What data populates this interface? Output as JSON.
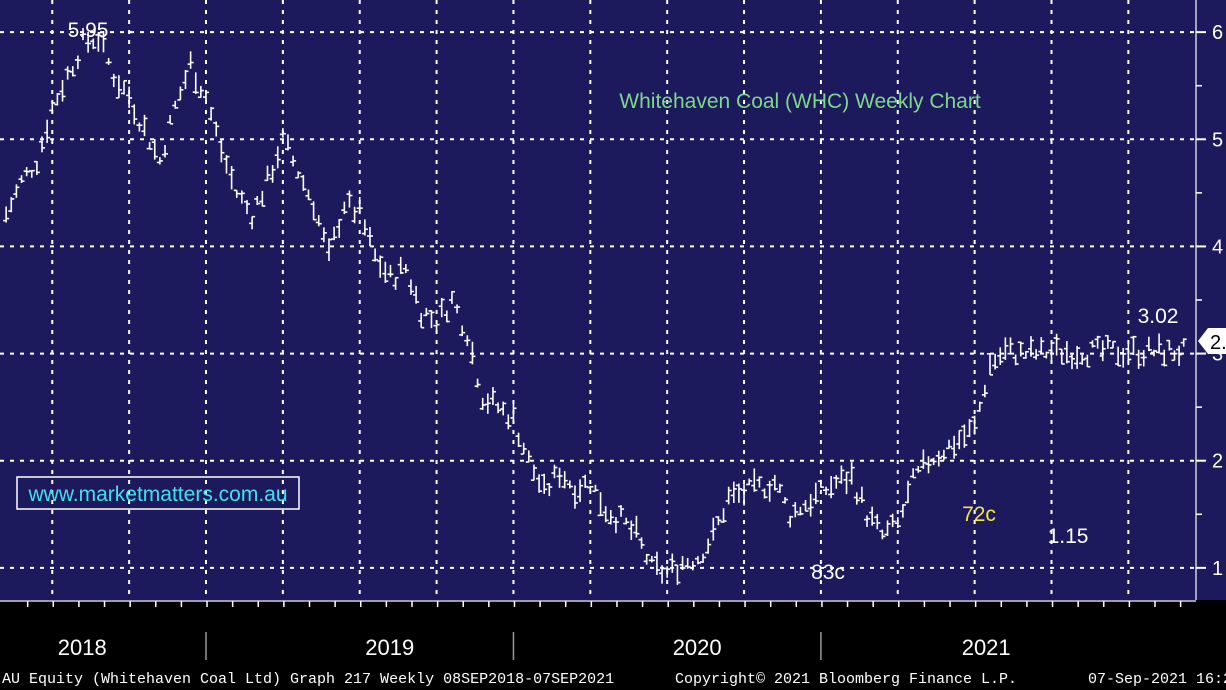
{
  "chart_data": {
    "type": "line",
    "title": "Whitehaven Coal (WHC) Weekly Chart",
    "watermark": "www.marketmatters.com.au",
    "x_labels": [
      "2018",
      "2019",
      "2020",
      "2021"
    ],
    "y_ticks": [
      "6",
      "5",
      "4",
      "3",
      "2",
      "1"
    ],
    "ylim": [
      0.7,
      6.3
    ],
    "grid": true,
    "last_price_tag": "2.",
    "annotations": [
      {
        "text": "5.95",
        "color": "#ffffff"
      },
      {
        "text": "83c",
        "color": "#ffffff"
      },
      {
        "text": "72c",
        "color": "#f5e63c"
      },
      {
        "text": "1.15",
        "color": "#ffffff"
      },
      {
        "text": "3.02",
        "color": "#ffffff"
      }
    ],
    "series": [
      {
        "name": "",
        "x": [
          2017.85,
          2017.9,
          2017.95,
          2018.0,
          2018.05,
          2018.1,
          2018.15,
          2018.2,
          2018.25,
          2018.3,
          2018.35,
          2018.4,
          2018.45,
          2018.5,
          2018.55,
          2018.6,
          2018.65,
          2018.7,
          2018.75,
          2018.8,
          2018.85,
          2018.9,
          2018.95,
          2019.0,
          2019.05,
          2019.1,
          2019.15,
          2019.2,
          2019.25,
          2019.3,
          2019.35,
          2019.4,
          2019.45,
          2019.5,
          2019.55,
          2019.6,
          2019.65,
          2019.7,
          2019.75,
          2019.8,
          2019.85,
          2019.9,
          2019.95,
          2020.0,
          2020.05,
          2020.1,
          2020.15,
          2020.2,
          2020.25,
          2020.3,
          2020.35,
          2020.4,
          2020.45,
          2020.5,
          2020.55,
          2020.6,
          2020.65,
          2020.7,
          2020.75,
          2020.8,
          2020.85,
          2020.9,
          2020.95,
          2021.0,
          2021.05,
          2021.1,
          2021.15,
          2021.2,
          2021.25,
          2021.3,
          2021.35,
          2021.4,
          2021.45,
          2021.5,
          2021.55,
          2021.6,
          2021.65,
          2021.68
        ],
        "y": [
          4.3,
          4.6,
          4.8,
          5.3,
          5.6,
          5.9,
          5.95,
          5.6,
          5.4,
          5.1,
          4.8,
          5.3,
          5.7,
          5.4,
          4.9,
          4.5,
          4.3,
          4.6,
          5.0,
          4.7,
          4.4,
          3.9,
          4.4,
          4.3,
          3.9,
          3.7,
          3.8,
          3.4,
          3.3,
          3.5,
          3.2,
          2.6,
          2.5,
          2.4,
          2.0,
          1.7,
          1.9,
          1.75,
          1.8,
          1.55,
          1.45,
          1.3,
          1.0,
          0.95,
          1.05,
          1.1,
          1.3,
          1.65,
          1.7,
          1.75,
          1.8,
          1.5,
          1.6,
          1.7,
          1.8,
          1.85,
          1.5,
          1.3,
          1.4,
          1.8,
          2.0,
          2.1,
          2.2,
          2.3,
          2.9,
          3.02,
          3.0,
          3.0,
          3.02,
          3.02,
          3.02,
          3.02,
          3.02,
          3.02,
          3.02,
          3.02,
          3.02,
          3.02
        ]
      }
    ]
  }
}
